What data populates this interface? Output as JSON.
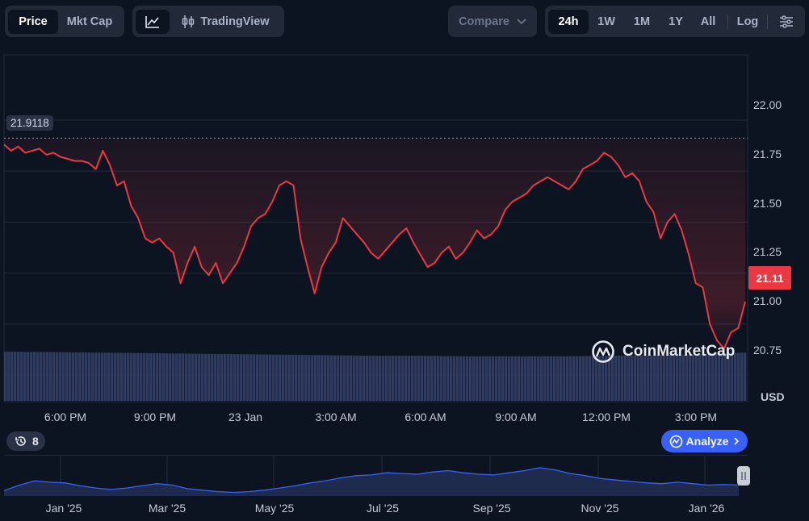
{
  "toolbar": {
    "price_label": "Price",
    "mktcap_label": "Mkt Cap",
    "tradingview_label": "TradingView",
    "compare_label": "Compare",
    "ranges": [
      "24h",
      "1W",
      "1M",
      "1Y",
      "All"
    ],
    "active_range": "24h",
    "log_label": "Log"
  },
  "colors": {
    "line": "#ea3943",
    "volume": "#2e3b63",
    "nav_line": "#3861fb",
    "analyze_bg": "#3861fb",
    "background": "#0d1421"
  },
  "chart_data": {
    "type": "line",
    "currency": "USD",
    "y_ticks": [
      "22.00",
      "21.75",
      "21.50",
      "21.25",
      "21.00",
      "20.75"
    ],
    "x_ticks": [
      "6:00 PM",
      "9:00 PM",
      "23 Jan",
      "3:00 AM",
      "6:00 AM",
      "9:00 AM",
      "12:00 PM",
      "3:00 PM"
    ],
    "ylim": [
      20.62,
      22.32
    ],
    "open_price_label": "21.9118",
    "open_price": 21.9118,
    "last_price_label": "21.11",
    "last_price": 21.11,
    "x_index_range": [
      0,
      100
    ],
    "prices": [
      21.88,
      21.85,
      21.87,
      21.84,
      21.85,
      21.86,
      21.83,
      21.84,
      21.82,
      21.81,
      21.8,
      21.8,
      21.79,
      21.76,
      21.85,
      21.78,
      21.68,
      21.7,
      21.58,
      21.52,
      21.42,
      21.4,
      21.42,
      21.38,
      21.35,
      21.2,
      21.3,
      21.38,
      21.28,
      21.24,
      21.3,
      21.2,
      21.25,
      21.3,
      21.38,
      21.48,
      21.52,
      21.54,
      21.6,
      21.68,
      21.7,
      21.68,
      21.42,
      21.28,
      21.15,
      21.28,
      21.35,
      21.4,
      21.52,
      21.48,
      21.44,
      21.4,
      21.35,
      21.32,
      21.36,
      21.4,
      21.44,
      21.47,
      21.4,
      21.34,
      21.28,
      21.3,
      21.35,
      21.38,
      21.32,
      21.35,
      21.4,
      21.46,
      21.42,
      21.44,
      21.48,
      21.56,
      21.6,
      21.62,
      21.64,
      21.68,
      21.7,
      21.72,
      21.7,
      21.68,
      21.66,
      21.7,
      21.76,
      21.78,
      21.8,
      21.84,
      21.82,
      21.78,
      21.72,
      21.74,
      21.7,
      21.6,
      21.55,
      21.42,
      21.5,
      21.54,
      21.46,
      21.34,
      21.2,
      21.18,
      21.0,
      20.92,
      20.88,
      20.96,
      20.98,
      21.11
    ],
    "volume_level": [
      0.94,
      0.93,
      0.92,
      0.91,
      0.9,
      0.89,
      0.88,
      0.87,
      0.86,
      0.86,
      0.85,
      0.85,
      0.85,
      0.86,
      0.87,
      0.89,
      0.92
    ],
    "navigator": {
      "x_ticks": [
        "Jan '25",
        "Mar '25",
        "May '25",
        "Jul '25",
        "Sep '25",
        "Nov '25",
        "Jan '26"
      ],
      "values": [
        0.15,
        0.3,
        0.42,
        0.38,
        0.36,
        0.28,
        0.22,
        0.18,
        0.22,
        0.28,
        0.34,
        0.3,
        0.2,
        0.16,
        0.12,
        0.1,
        0.12,
        0.16,
        0.22,
        0.28,
        0.36,
        0.42,
        0.5,
        0.56,
        0.58,
        0.64,
        0.62,
        0.6,
        0.66,
        0.7,
        0.64,
        0.6,
        0.58,
        0.64,
        0.7,
        0.78,
        0.72,
        0.62,
        0.56,
        0.48,
        0.44,
        0.4,
        0.36,
        0.34,
        0.38,
        0.34,
        0.3,
        0.32,
        0.3
      ]
    }
  },
  "watermark": "CoinMarketCap",
  "alerts_count": "8",
  "analyze_label": "Analyze"
}
